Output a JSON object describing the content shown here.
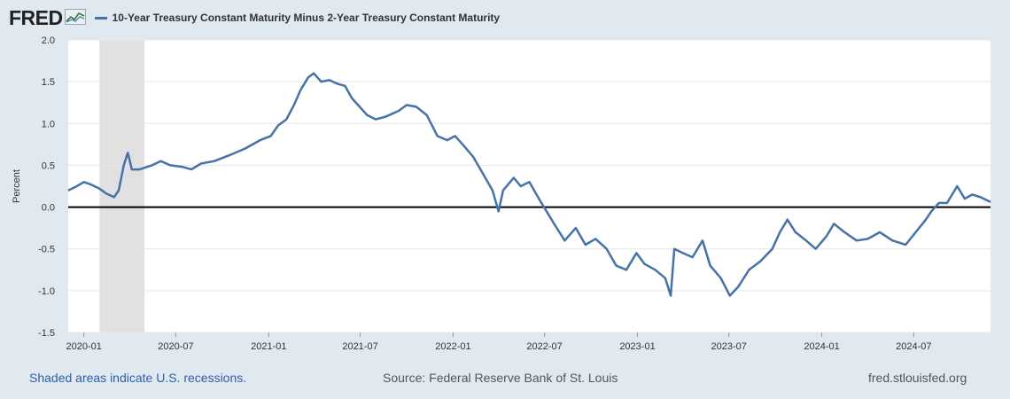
{
  "header": {
    "logo_text": "FRED",
    "legend_label": "10-Year Treasury Constant Maturity Minus 2-Year Treasury Constant Maturity"
  },
  "footer": {
    "recession_note": "Shaded areas indicate U.S. recessions.",
    "source": "Source: Federal Reserve Bank of St. Louis",
    "site": "fred.stlouisfed.org"
  },
  "colors": {
    "series": "#4572a7",
    "recession": "#e1e1e1",
    "zero_line": "#000000",
    "background": "#e1e9f0"
  },
  "chart_data": {
    "type": "line",
    "title": "",
    "xlabel": "",
    "ylabel": "Percent",
    "ylim": [
      -1.5,
      2.0
    ],
    "x_range": [
      "2019-12-01",
      "2024-11-30"
    ],
    "yticks": [
      "2.0",
      "1.5",
      "1.0",
      "0.5",
      "0.0",
      "-0.5",
      "-1.0",
      "-1.5"
    ],
    "xticks": [
      "2020-01",
      "2020-07",
      "2021-01",
      "2021-07",
      "2022-01",
      "2022-07",
      "2023-01",
      "2023-07",
      "2024-01",
      "2024-07"
    ],
    "grid": true,
    "recessions": [
      {
        "start": "2020-02-01",
        "end": "2020-04-30"
      }
    ],
    "reference_line": 0,
    "series": [
      {
        "name": "10-Year Treasury Constant Maturity Minus 2-Year Treasury Constant Maturity",
        "points": [
          [
            "2019-12-01",
            0.2
          ],
          [
            "2019-12-15",
            0.24
          ],
          [
            "2020-01-01",
            0.3
          ],
          [
            "2020-01-15",
            0.27
          ],
          [
            "2020-02-01",
            0.22
          ],
          [
            "2020-02-15",
            0.16
          ],
          [
            "2020-03-01",
            0.12
          ],
          [
            "2020-03-10",
            0.2
          ],
          [
            "2020-03-20",
            0.5
          ],
          [
            "2020-03-28",
            0.65
          ],
          [
            "2020-04-05",
            0.45
          ],
          [
            "2020-04-20",
            0.45
          ],
          [
            "2020-05-15",
            0.5
          ],
          [
            "2020-06-01",
            0.55
          ],
          [
            "2020-06-20",
            0.5
          ],
          [
            "2020-07-15",
            0.48
          ],
          [
            "2020-08-01",
            0.45
          ],
          [
            "2020-08-20",
            0.52
          ],
          [
            "2020-09-15",
            0.55
          ],
          [
            "2020-10-15",
            0.62
          ],
          [
            "2020-11-15",
            0.7
          ],
          [
            "2020-12-15",
            0.8
          ],
          [
            "2021-01-05",
            0.85
          ],
          [
            "2021-01-20",
            0.98
          ],
          [
            "2021-02-05",
            1.05
          ],
          [
            "2021-02-20",
            1.22
          ],
          [
            "2021-03-05",
            1.4
          ],
          [
            "2021-03-20",
            1.55
          ],
          [
            "2021-03-31",
            1.6
          ],
          [
            "2021-04-15",
            1.5
          ],
          [
            "2021-05-01",
            1.52
          ],
          [
            "2021-05-15",
            1.48
          ],
          [
            "2021-06-01",
            1.45
          ],
          [
            "2021-06-15",
            1.3
          ],
          [
            "2021-06-30",
            1.2
          ],
          [
            "2021-07-15",
            1.1
          ],
          [
            "2021-08-01",
            1.05
          ],
          [
            "2021-08-20",
            1.08
          ],
          [
            "2021-09-15",
            1.15
          ],
          [
            "2021-10-01",
            1.22
          ],
          [
            "2021-10-20",
            1.2
          ],
          [
            "2021-11-10",
            1.1
          ],
          [
            "2021-12-01",
            0.85
          ],
          [
            "2021-12-20",
            0.8
          ],
          [
            "2022-01-05",
            0.85
          ],
          [
            "2022-01-20",
            0.75
          ],
          [
            "2022-02-10",
            0.6
          ],
          [
            "2022-03-01",
            0.4
          ],
          [
            "2022-03-20",
            0.2
          ],
          [
            "2022-04-01",
            -0.05
          ],
          [
            "2022-04-10",
            0.2
          ],
          [
            "2022-05-01",
            0.35
          ],
          [
            "2022-05-15",
            0.25
          ],
          [
            "2022-06-01",
            0.3
          ],
          [
            "2022-06-20",
            0.1
          ],
          [
            "2022-07-05",
            -0.05
          ],
          [
            "2022-07-20",
            -0.2
          ],
          [
            "2022-08-10",
            -0.4
          ],
          [
            "2022-09-01",
            -0.25
          ],
          [
            "2022-09-20",
            -0.45
          ],
          [
            "2022-10-10",
            -0.38
          ],
          [
            "2022-11-01",
            -0.5
          ],
          [
            "2022-11-20",
            -0.7
          ],
          [
            "2022-12-10",
            -0.75
          ],
          [
            "2022-12-30",
            -0.55
          ],
          [
            "2023-01-15",
            -0.68
          ],
          [
            "2023-02-05",
            -0.75
          ],
          [
            "2023-02-25",
            -0.85
          ],
          [
            "2023-03-08",
            -1.06
          ],
          [
            "2023-03-15",
            -0.5
          ],
          [
            "2023-04-01",
            -0.55
          ],
          [
            "2023-04-20",
            -0.6
          ],
          [
            "2023-05-10",
            -0.4
          ],
          [
            "2023-05-25",
            -0.7
          ],
          [
            "2023-06-15",
            -0.85
          ],
          [
            "2023-07-03",
            -1.06
          ],
          [
            "2023-07-20",
            -0.95
          ],
          [
            "2023-08-10",
            -0.75
          ],
          [
            "2023-09-01",
            -0.65
          ],
          [
            "2023-09-25",
            -0.5
          ],
          [
            "2023-10-10",
            -0.3
          ],
          [
            "2023-10-25",
            -0.15
          ],
          [
            "2023-11-10",
            -0.3
          ],
          [
            "2023-12-01",
            -0.4
          ],
          [
            "2023-12-20",
            -0.5
          ],
          [
            "2024-01-10",
            -0.35
          ],
          [
            "2024-01-25",
            -0.2
          ],
          [
            "2024-02-15",
            -0.3
          ],
          [
            "2024-03-10",
            -0.4
          ],
          [
            "2024-04-01",
            -0.38
          ],
          [
            "2024-04-25",
            -0.3
          ],
          [
            "2024-05-20",
            -0.4
          ],
          [
            "2024-06-15",
            -0.45
          ],
          [
            "2024-07-05",
            -0.3
          ],
          [
            "2024-07-25",
            -0.15
          ],
          [
            "2024-08-05",
            -0.05
          ],
          [
            "2024-08-20",
            0.05
          ],
          [
            "2024-09-05",
            0.05
          ],
          [
            "2024-09-15",
            0.15
          ],
          [
            "2024-09-25",
            0.25
          ],
          [
            "2024-10-10",
            0.1
          ],
          [
            "2024-10-25",
            0.15
          ],
          [
            "2024-11-10",
            0.12
          ],
          [
            "2024-11-30",
            0.06
          ]
        ]
      }
    ]
  }
}
